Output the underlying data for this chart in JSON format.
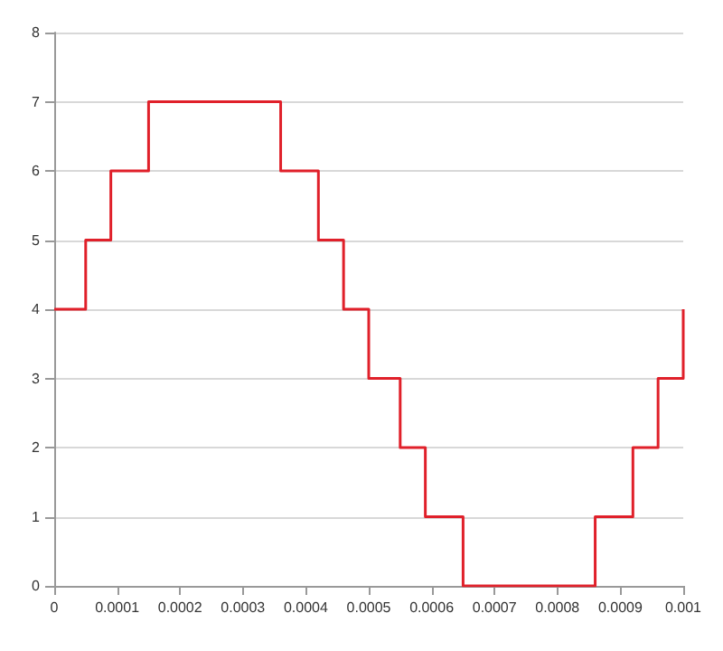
{
  "chart_data": {
    "type": "step",
    "x": [
      0,
      5e-05,
      9e-05,
      0.00015,
      0.00036,
      0.00042,
      0.00046,
      0.0005,
      0.00055,
      0.00059,
      0.00065,
      0.00086,
      0.00092,
      0.00096,
      0.001
    ],
    "series": [
      {
        "color": "#e0202a",
        "values": [
          4,
          5,
          6,
          7,
          6,
          5,
          4,
          3,
          2,
          1,
          0,
          1,
          2,
          3,
          4
        ]
      }
    ],
    "xlim": [
      0,
      0.001
    ],
    "xticks": [
      0,
      0.0001,
      0.0002,
      0.0003,
      0.0004,
      0.0005,
      0.0006,
      0.0007,
      0.0008,
      0.0009,
      0.001
    ],
    "ylim": [
      0,
      8
    ],
    "yticks": [
      0,
      1,
      2,
      3,
      4,
      5,
      6,
      7,
      8
    ],
    "grid": "y",
    "marker": "none",
    "line_style": "solid"
  }
}
